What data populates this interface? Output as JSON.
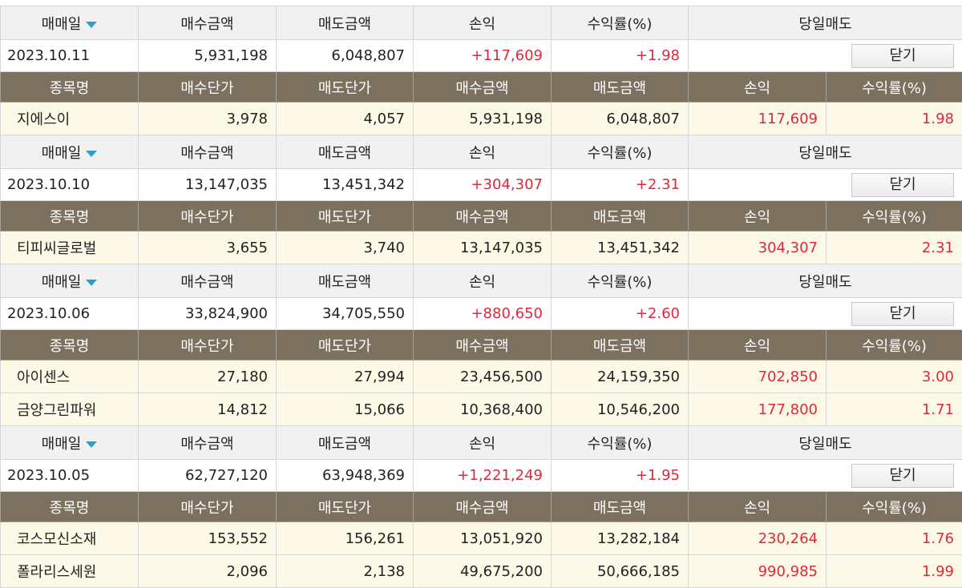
{
  "blocks": [
    {
      "header": [
        "매매일",
        "매수금액",
        "매도금액",
        "손익",
        "수익률(%)",
        "당일매도"
      ],
      "summary": {
        "date": "2023.10.11",
        "buy": "5,931,198",
        "sell": "6,048,807",
        "profit": "+117,609",
        "rate": "+1.98",
        "button": "닫기"
      },
      "columns": [
        "종목명",
        "매수단가",
        "매도단가",
        "매수금액",
        "매도금액",
        "손익",
        "수익률(%)"
      ],
      "items": [
        [
          "지에스이",
          "3,978",
          "4,057",
          "5,931,198",
          "6,048,807",
          "117,609",
          "1.98"
        ]
      ]
    },
    {
      "header": [
        "매매일",
        "매수금액",
        "매도금액",
        "손익",
        "수익률(%)",
        "당일매도"
      ],
      "summary": {
        "date": "2023.10.10",
        "buy": "13,147,035",
        "sell": "13,451,342",
        "profit": "+304,307",
        "rate": "+2.31",
        "button": "닫기"
      },
      "columns": [
        "종목명",
        "매수단가",
        "매도단가",
        "매수금액",
        "매도금액",
        "손익",
        "수익률(%)"
      ],
      "items": [
        [
          "티피씨글로벌",
          "3,655",
          "3,740",
          "13,147,035",
          "13,451,342",
          "304,307",
          "2.31"
        ]
      ]
    },
    {
      "header": [
        "매매일",
        "매수금액",
        "매도금액",
        "손익",
        "수익률(%)",
        "당일매도"
      ],
      "summary": {
        "date": "2023.10.06",
        "buy": "33,824,900",
        "sell": "34,705,550",
        "profit": "+880,650",
        "rate": "+2.60",
        "button": "닫기"
      },
      "columns": [
        "종목명",
        "매수단가",
        "매도단가",
        "매수금액",
        "매도금액",
        "손익",
        "수익률(%)"
      ],
      "items": [
        [
          "아이센스",
          "27,180",
          "27,994",
          "23,456,500",
          "24,159,350",
          "702,850",
          "3.00"
        ],
        [
          "금양그린파워",
          "14,812",
          "15,066",
          "10,368,400",
          "10,546,200",
          "177,800",
          "1.71"
        ]
      ]
    },
    {
      "header": [
        "매매일",
        "매수금액",
        "매도금액",
        "손익",
        "수익률(%)",
        "당일매도"
      ],
      "summary": {
        "date": "2023.10.05",
        "buy": "62,727,120",
        "sell": "63,948,369",
        "profit": "+1,221,249",
        "rate": "+1.95",
        "button": "닫기"
      },
      "columns": [
        "종목명",
        "매수단가",
        "매도단가",
        "매수금액",
        "매도금액",
        "손익",
        "수익률(%)"
      ],
      "items": [
        [
          "코스모신소재",
          "153,552",
          "156,261",
          "13,051,920",
          "13,282,184",
          "230,264",
          "1.76"
        ],
        [
          "폴라리스세원",
          "2,096",
          "2,138",
          "49,675,200",
          "50,666,185",
          "990,985",
          "1.99"
        ]
      ]
    }
  ]
}
